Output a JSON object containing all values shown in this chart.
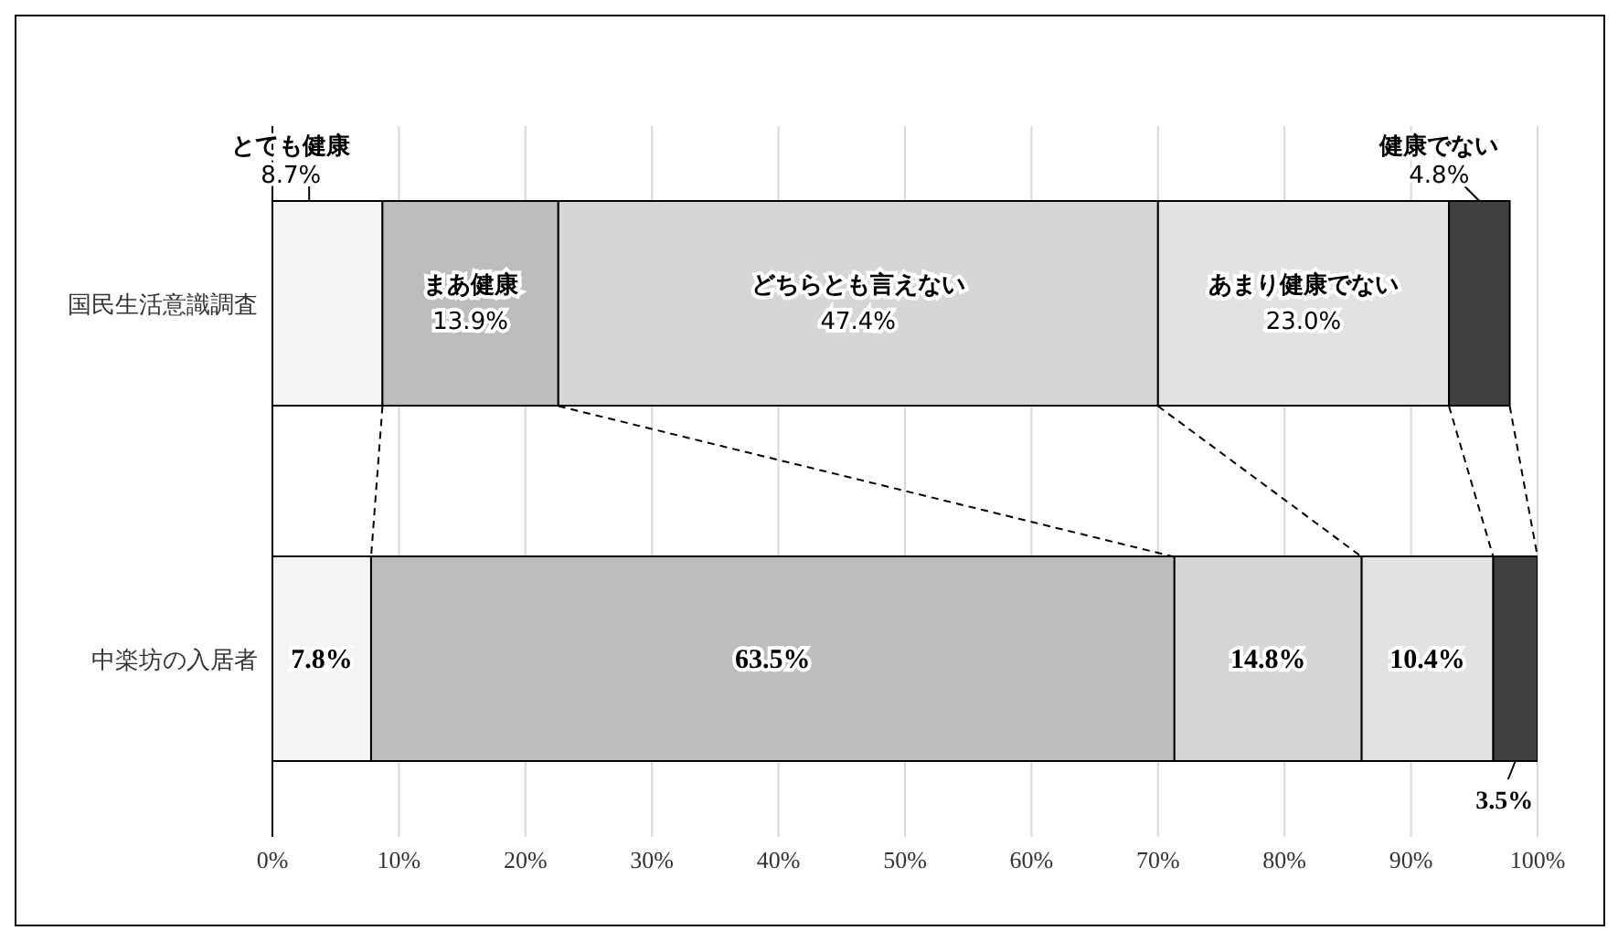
{
  "chart_data": {
    "type": "bar",
    "orientation": "horizontal",
    "stacked": true,
    "categories": [
      "国民生活意識調査",
      "中楽坊の入居者"
    ],
    "series": [
      {
        "name": "とても健康",
        "color": "#f4f4f4",
        "values": [
          8.7,
          7.8
        ],
        "value_labels": [
          "8.7%",
          "7.8%"
        ]
      },
      {
        "name": "まあ健康",
        "color": "#bdbdbd",
        "values": [
          13.9,
          63.5
        ],
        "value_labels": [
          "13.9%",
          "63.5%"
        ]
      },
      {
        "name": "どちらとも言えない",
        "color": "#d6d6d6",
        "values": [
          47.4,
          14.8
        ],
        "value_labels": [
          "47.4%",
          "14.8%"
        ]
      },
      {
        "name": "あまり健康でない",
        "color": "#e2e2e2",
        "values": [
          23.0,
          10.4
        ],
        "value_labels": [
          "23.0%",
          "10.4%"
        ]
      },
      {
        "name": "健康でない",
        "color": "#404040",
        "values": [
          4.8,
          3.5
        ],
        "value_labels": [
          "4.8%",
          "3.5%"
        ]
      }
    ],
    "xlim": [
      0,
      100
    ],
    "xticks": [
      {
        "value": 0,
        "label": "0%"
      },
      {
        "value": 10,
        "label": "10%"
      },
      {
        "value": 20,
        "label": "20%"
      },
      {
        "value": 30,
        "label": "30%"
      },
      {
        "value": 40,
        "label": "40%"
      },
      {
        "value": 50,
        "label": "50%"
      },
      {
        "value": 60,
        "label": "60%"
      },
      {
        "value": 70,
        "label": "70%"
      },
      {
        "value": 80,
        "label": "80%"
      },
      {
        "value": 90,
        "label": "90%"
      },
      {
        "value": 100,
        "label": "100%"
      }
    ],
    "grid": "x",
    "legend": false
  }
}
